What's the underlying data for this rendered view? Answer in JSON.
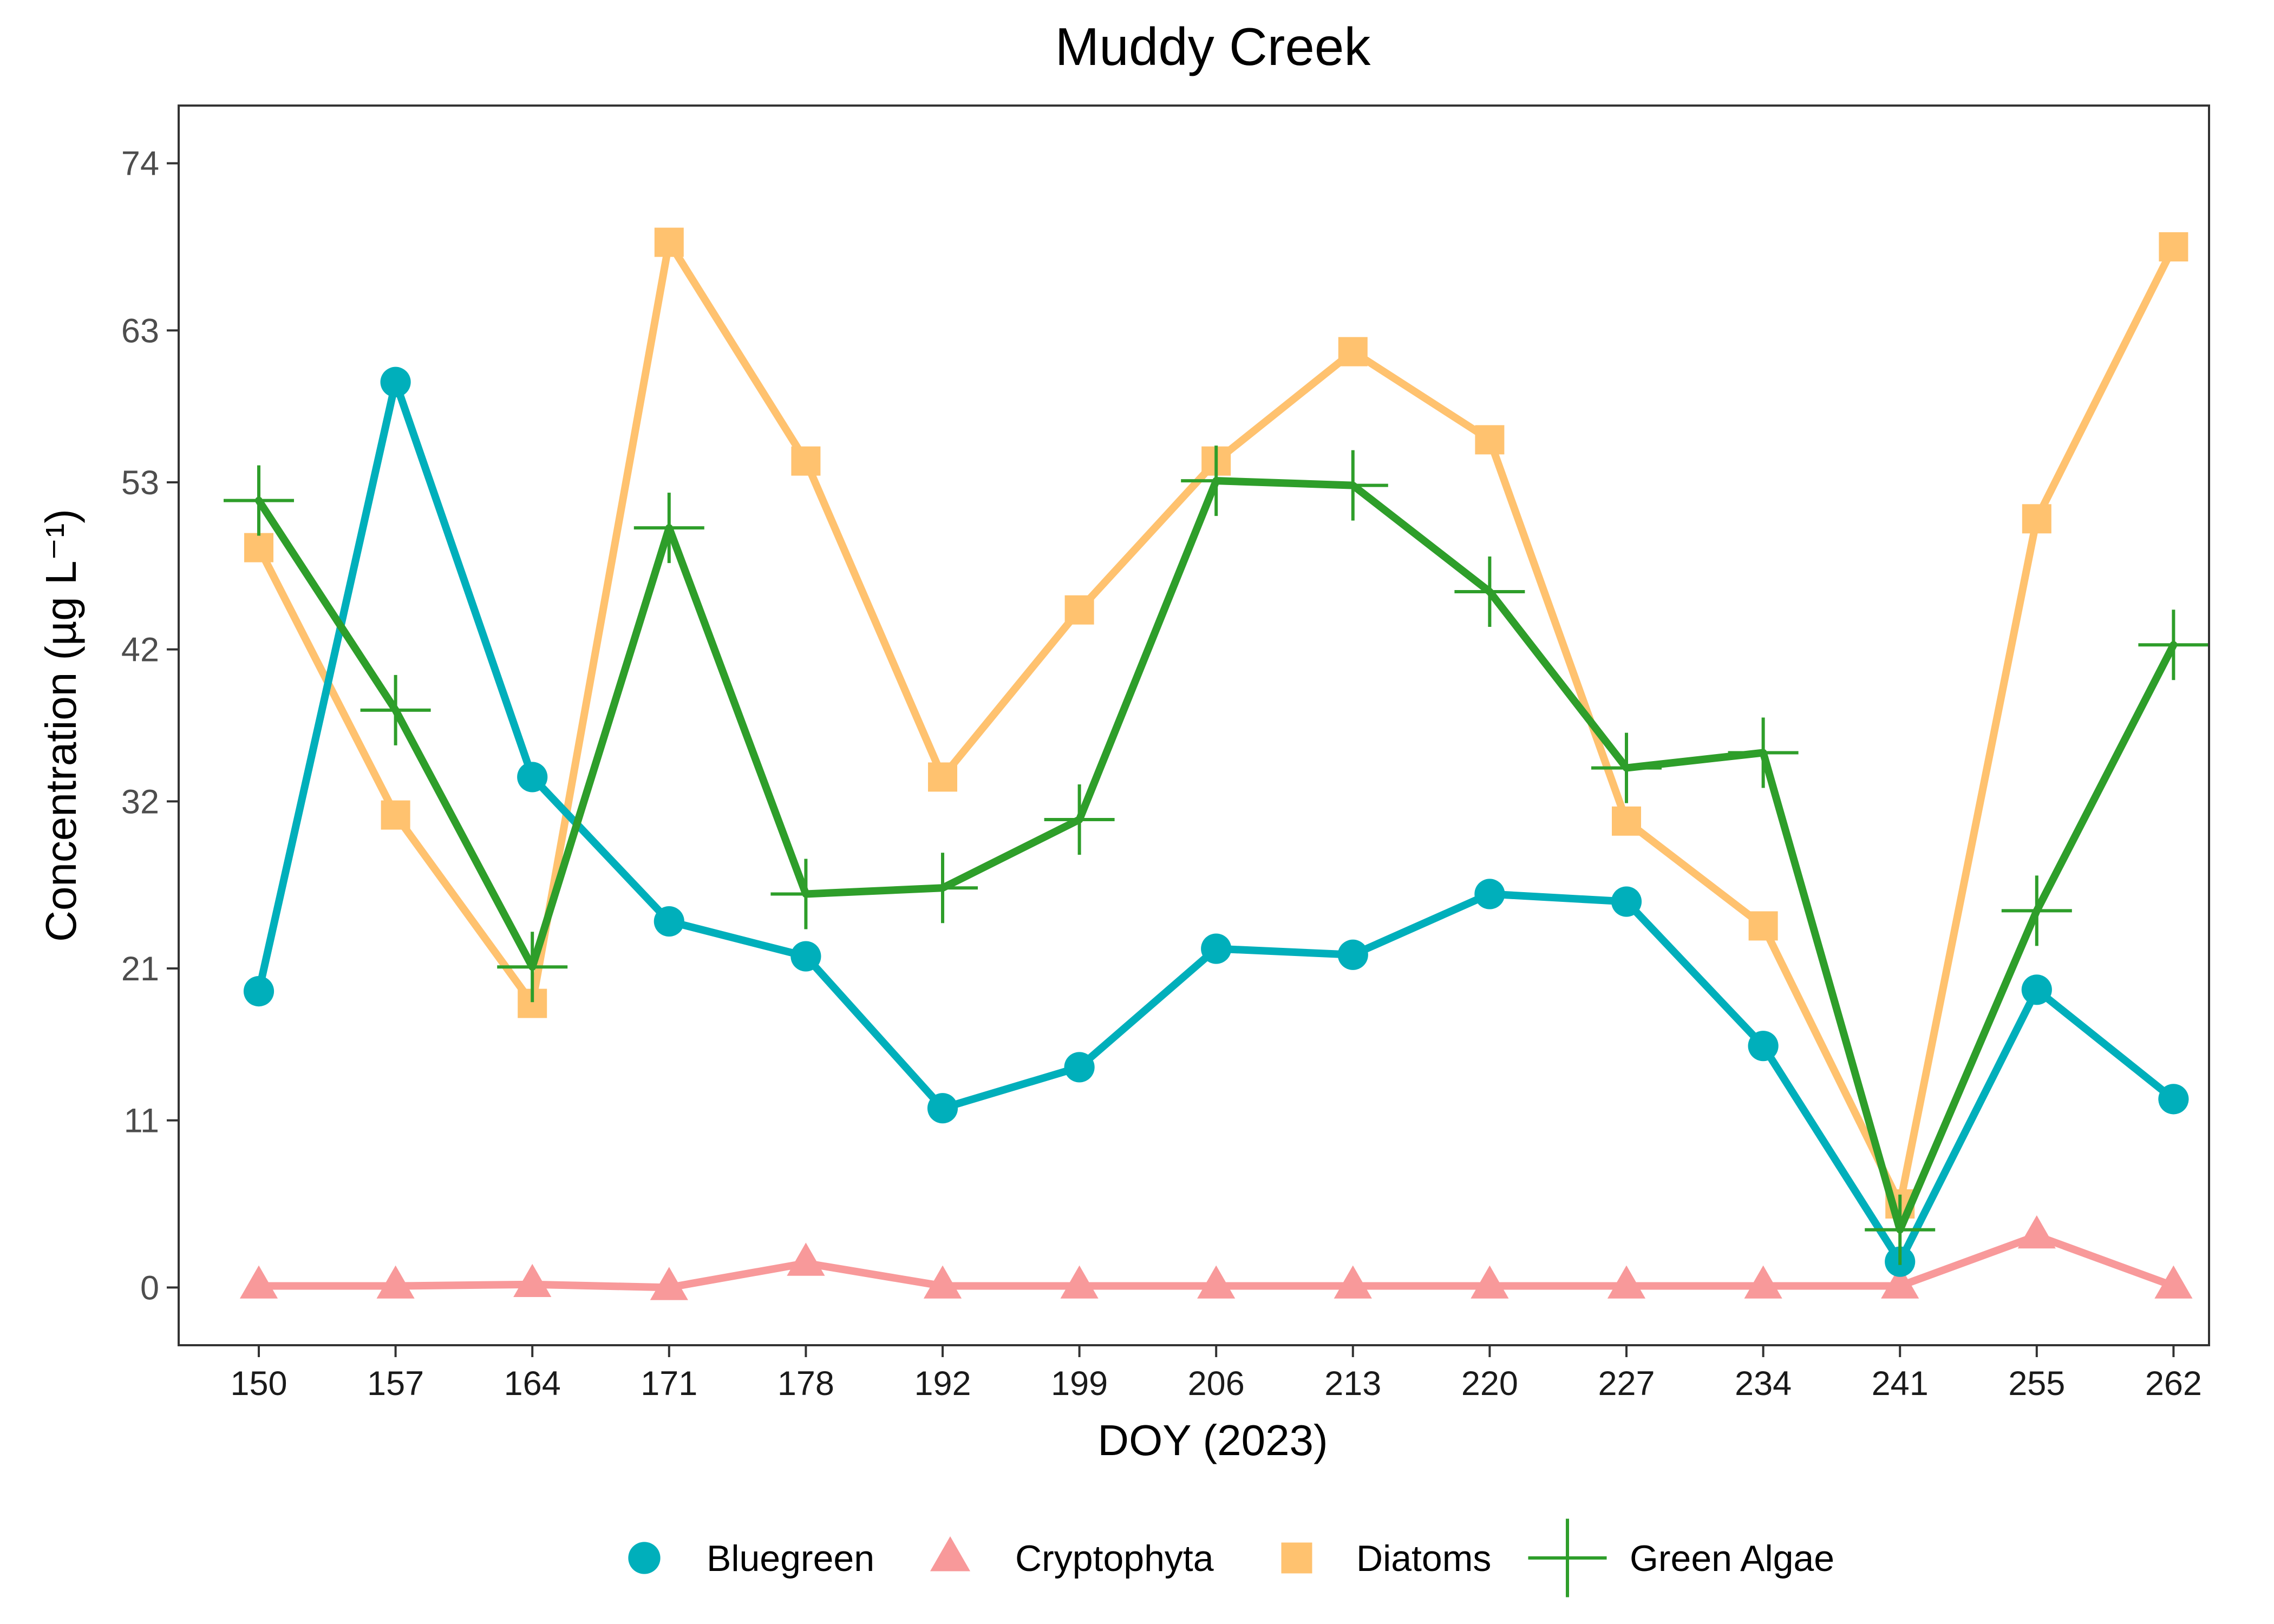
{
  "chart_data": {
    "type": "line",
    "title": "Muddy Creek",
    "xlabel": "DOY (2023)",
    "ylabel": "Concentration (µg L⁻¹)",
    "categories": [
      "150",
      "157",
      "164",
      "171",
      "178",
      "192",
      "199",
      "206",
      "213",
      "220",
      "227",
      "234",
      "241",
      "255",
      "262"
    ],
    "y_ticks": [
      0,
      11,
      21,
      32,
      42,
      53,
      63,
      74
    ],
    "ylim": [
      -3.8,
      77.8
    ],
    "grid": false,
    "legend_position": "bottom",
    "series": [
      {
        "name": "Bluegreen",
        "color": "#00AFBB",
        "marker": "circle",
        "values": [
          19.5,
          59.6,
          33.6,
          24.1,
          21.8,
          11.8,
          14.5,
          22.3,
          21.9,
          25.9,
          25.4,
          15.9,
          1.7,
          19.6,
          12.4
        ]
      },
      {
        "name": "Cryptophyta",
        "color": "#F8999A",
        "marker": "triangle",
        "values": [
          0.1,
          0.1,
          0.2,
          0.0,
          1.6,
          0.1,
          0.1,
          0.1,
          0.1,
          0.1,
          0.1,
          0.1,
          0.1,
          3.4,
          0.1
        ]
      },
      {
        "name": "Diatoms",
        "color": "#FFC26F",
        "marker": "square",
        "values": [
          48.7,
          31.1,
          18.7,
          68.8,
          54.4,
          33.6,
          44.6,
          54.4,
          61.6,
          55.8,
          30.7,
          23.8,
          5.5,
          50.6,
          68.5
        ]
      },
      {
        "name": "Green Algae",
        "color": "#2E9E2A",
        "marker": "plus",
        "values": [
          51.8,
          38.0,
          21.1,
          50.0,
          25.9,
          26.3,
          30.8,
          53.1,
          52.8,
          45.8,
          34.2,
          35.2,
          3.8,
          24.8,
          42.3
        ]
      }
    ]
  }
}
